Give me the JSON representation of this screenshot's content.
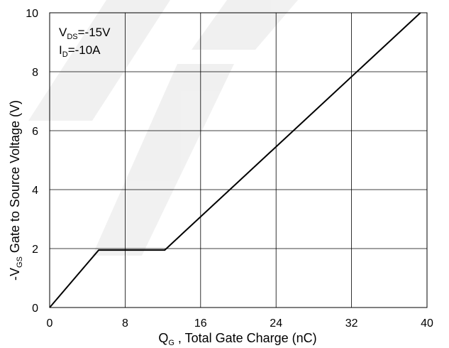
{
  "chart_data": {
    "type": "line",
    "xlabel": {
      "prefix": "Q",
      "sub": "G",
      "rest": " , Total Gate Charge (nC)"
    },
    "ylabel": {
      "prefix": "-V",
      "sub": "GS",
      "rest": "  Gate to Source Voltage (V)"
    },
    "xlim": [
      0,
      40
    ],
    "ylim": [
      0,
      10
    ],
    "xticks": [
      0,
      8,
      16,
      24,
      32,
      40
    ],
    "yticks": [
      0,
      2,
      4,
      6,
      8,
      10
    ],
    "grid": true,
    "annotations": [
      {
        "prefix": "V",
        "sub": "DS",
        "rest": "=-15V"
      },
      {
        "prefix": "I",
        "sub": "D",
        "rest": "=-10A"
      }
    ],
    "series": [
      {
        "x": [
          0,
          5.2,
          12.2,
          39.3
        ],
        "y": [
          0,
          1.95,
          1.95,
          10
        ]
      }
    ]
  },
  "style": {
    "line_color": "#000000",
    "grid_color": "#000000",
    "watermark_color": "#d3d3d3"
  }
}
